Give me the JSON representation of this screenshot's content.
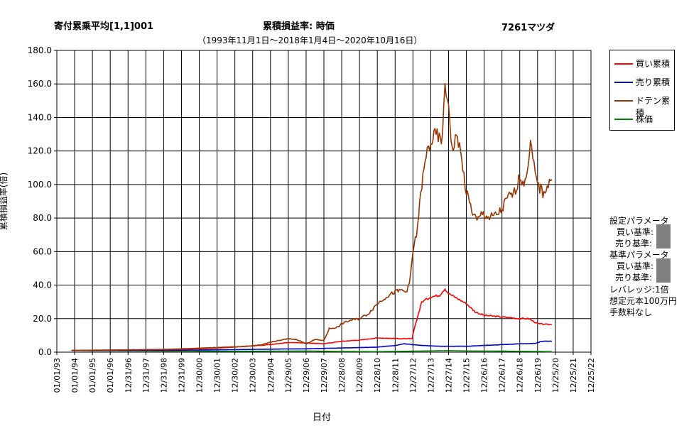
{
  "header": {
    "left": "寄付累乗平均[1,1]001",
    "center": "累積損益率:  時価",
    "right": "7261マツダ",
    "period": "（1993年11月1日～2018年1月4日～2020年10月16日）"
  },
  "colors": {
    "buy": "#ff0000",
    "sell": "#0000cc",
    "doten": "#993300",
    "price": "#008000"
  },
  "legend": {
    "buy": "買い累積",
    "sell": "売り累積",
    "doten": "ドテン累積",
    "price": "株価"
  },
  "params": {
    "setting_title": "設定パラメータ",
    "buy_label": "買い基準:",
    "sell_label": "売り基準:",
    "base_title": "基準パラメータ",
    "base_buy_label": "買い基準:",
    "base_sell_label": "売り基準:",
    "leverage": "レバレッジ:1倍",
    "capital": "想定元本100万円",
    "fee": "手数料なし"
  },
  "chart_data": {
    "type": "line",
    "title": "累積損益率:  時価",
    "xlabel": "日付",
    "ylabel": "累積損益率(倍)",
    "ylim": [
      0,
      180
    ],
    "yticks": [
      "0.0",
      "20.0",
      "40.0",
      "60.0",
      "80.0",
      "100.0",
      "120.0",
      "140.0",
      "160.0",
      "180.0"
    ],
    "xticks": [
      "01/01/93",
      "01/01/94",
      "01/01/95",
      "01/01/96",
      "12/31/96",
      "12/31/97",
      "12/31/98",
      "12/31/99",
      "12/30/00",
      "12/30/01",
      "12/30/02",
      "12/30/03",
      "12/29/04",
      "12/29/05",
      "12/29/06",
      "12/29/07",
      "12/28/08",
      "12/28/09",
      "12/28/10",
      "12/28/11",
      "12/27/12",
      "12/27/13",
      "12/27/14",
      "12/27/15",
      "12/26/16",
      "12/26/17",
      "12/26/18",
      "12/26/19",
      "12/25/20",
      "12/25/21",
      "12/25/22"
    ],
    "xrange": [
      1993.0,
      2023.0
    ],
    "grid": true,
    "legend_position": "right",
    "series": [
      {
        "name": "買い累積",
        "color": "#ff0000",
        "points": [
          [
            1993.83,
            1.0
          ],
          [
            1996.0,
            1.3
          ],
          [
            1999.0,
            1.5
          ],
          [
            2001.0,
            2.0
          ],
          [
            2003.0,
            3.0
          ],
          [
            2005.0,
            4.5
          ],
          [
            2006.0,
            5.8
          ],
          [
            2007.0,
            5.5
          ],
          [
            2008.0,
            5.0
          ],
          [
            2009.0,
            6.5
          ],
          [
            2010.0,
            7.2
          ],
          [
            2011.0,
            8.5
          ],
          [
            2012.5,
            8.0
          ],
          [
            2012.95,
            8.0
          ],
          [
            2013.1,
            15.0
          ],
          [
            2013.5,
            30.0
          ],
          [
            2014.0,
            33.0
          ],
          [
            2014.5,
            34.0
          ],
          [
            2014.8,
            38.0
          ],
          [
            2015.0,
            35.0
          ],
          [
            2015.5,
            32.0
          ],
          [
            2016.0,
            29.0
          ],
          [
            2016.5,
            24.0
          ],
          [
            2017.0,
            22.0
          ],
          [
            2018.0,
            21.0
          ],
          [
            2019.0,
            20.0
          ],
          [
            2019.5,
            20.0
          ],
          [
            2020.0,
            17.0
          ],
          [
            2020.5,
            16.5
          ],
          [
            2020.8,
            16.5
          ]
        ]
      },
      {
        "name": "売り累積",
        "color": "#0000cc",
        "points": [
          [
            1993.83,
            1.0
          ],
          [
            1996.0,
            1.0
          ],
          [
            1999.0,
            1.1
          ],
          [
            2001.0,
            1.3
          ],
          [
            2003.0,
            1.5
          ],
          [
            2005.0,
            1.8
          ],
          [
            2007.0,
            2.0
          ],
          [
            2009.0,
            2.5
          ],
          [
            2011.0,
            3.0
          ],
          [
            2012.0,
            4.0
          ],
          [
            2012.5,
            5.0
          ],
          [
            2013.5,
            4.0
          ],
          [
            2014.5,
            3.5
          ],
          [
            2016.0,
            3.5
          ],
          [
            2017.0,
            4.0
          ],
          [
            2018.0,
            4.5
          ],
          [
            2019.0,
            5.0
          ],
          [
            2019.9,
            5.2
          ],
          [
            2020.2,
            6.5
          ],
          [
            2020.8,
            6.5
          ]
        ]
      },
      {
        "name": "ドテン累積",
        "color": "#993300",
        "points": [
          [
            1993.83,
            1.0
          ],
          [
            1996.0,
            1.2
          ],
          [
            1998.0,
            1.5
          ],
          [
            1999.5,
            1.8
          ],
          [
            2000.5,
            2.2
          ],
          [
            2001.5,
            2.6
          ],
          [
            2002.5,
            3.0
          ],
          [
            2003.5,
            3.4
          ],
          [
            2004.5,
            4.3
          ],
          [
            2005.0,
            6.0
          ],
          [
            2005.5,
            7.0
          ],
          [
            2006.0,
            8.0
          ],
          [
            2006.5,
            7.5
          ],
          [
            2007.0,
            5.0
          ],
          [
            2007.5,
            7.5
          ],
          [
            2008.0,
            7.0
          ],
          [
            2008.3,
            14.0
          ],
          [
            2008.8,
            15.0
          ],
          [
            2009.0,
            17.0
          ],
          [
            2009.5,
            19.0
          ],
          [
            2010.0,
            20.0
          ],
          [
            2010.5,
            23.0
          ],
          [
            2011.0,
            29.0
          ],
          [
            2011.5,
            33.0
          ],
          [
            2012.0,
            36.0
          ],
          [
            2012.4,
            37.0
          ],
          [
            2012.6,
            36.0
          ],
          [
            2012.8,
            40.0
          ],
          [
            2013.0,
            60.0
          ],
          [
            2013.2,
            70.0
          ],
          [
            2013.5,
            100.0
          ],
          [
            2013.8,
            120.0
          ],
          [
            2014.0,
            125.0
          ],
          [
            2014.3,
            130.0
          ],
          [
            2014.6,
            125.0
          ],
          [
            2014.8,
            155.0
          ],
          [
            2015.0,
            150.0
          ],
          [
            2015.2,
            120.0
          ],
          [
            2015.5,
            130.0
          ],
          [
            2015.8,
            110.0
          ],
          [
            2016.0,
            95.0
          ],
          [
            2016.3,
            85.0
          ],
          [
            2016.6,
            78.0
          ],
          [
            2016.9,
            83.0
          ],
          [
            2017.3,
            80.0
          ],
          [
            2017.7,
            82.0
          ],
          [
            2018.0,
            85.0
          ],
          [
            2018.3,
            92.0
          ],
          [
            2018.7,
            95.0
          ],
          [
            2019.0,
            105.0
          ],
          [
            2019.3,
            100.0
          ],
          [
            2019.6,
            125.0
          ],
          [
            2019.8,
            110.0
          ],
          [
            2020.0,
            100.0
          ],
          [
            2020.3,
            95.0
          ],
          [
            2020.6,
            100.0
          ],
          [
            2020.8,
            103.0
          ]
        ]
      },
      {
        "name": "株価",
        "color": "#008000",
        "points": [
          [
            1993.83,
            1.0
          ],
          [
            1995.0,
            0.9
          ],
          [
            1997.0,
            0.8
          ],
          [
            1999.0,
            0.7
          ],
          [
            2001.0,
            0.6
          ],
          [
            2003.0,
            0.5
          ],
          [
            2005.0,
            0.6
          ],
          [
            2007.0,
            0.7
          ],
          [
            2009.0,
            0.4
          ],
          [
            2011.0,
            0.3
          ],
          [
            2013.0,
            0.6
          ],
          [
            2015.0,
            0.9
          ],
          [
            2016.0,
            0.7
          ],
          [
            2018.0,
            0.6
          ],
          [
            2020.0,
            0.4
          ],
          [
            2020.8,
            0.3
          ]
        ]
      }
    ]
  }
}
